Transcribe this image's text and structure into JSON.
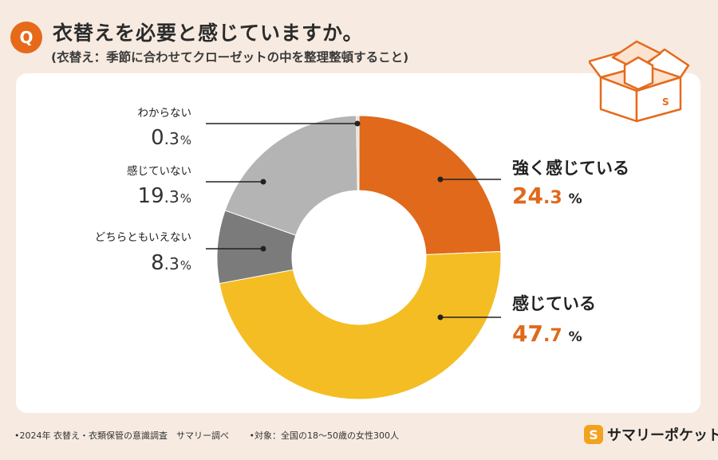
{
  "header": {
    "badge": "Q",
    "title": "衣替えを必要と感じていますか。",
    "subtitle": "(衣替え：季節に合わせてクローゼットの中を整理整頓すること)"
  },
  "chart_data": {
    "type": "pie",
    "variant": "donut",
    "start": "12 o'clock",
    "direction": "clockwise",
    "unit": "%",
    "slices": [
      {
        "label": "強く感じている",
        "value": 24.3,
        "value_int": "24",
        "value_dec": ".3",
        "color": "#e0691b",
        "label_color": "#e0691b"
      },
      {
        "label": "感じている",
        "value": 47.7,
        "value_int": "47",
        "value_dec": ".7",
        "color": "#f4bd24",
        "label_color": "#e0691b"
      },
      {
        "label": "どちらともいえない",
        "value": 8.3,
        "value_int": "8",
        "value_dec": ".3",
        "color": "#7b7b7b",
        "label_color": "#333333"
      },
      {
        "label": "感じていない",
        "value": 19.3,
        "value_int": "19",
        "value_dec": ".3",
        "color": "#b4b4b4",
        "label_color": "#333333"
      },
      {
        "label": "わからない",
        "value": 0.3,
        "value_int": "0",
        "value_dec": ".3",
        "color": "#dcdcdc",
        "label_color": "#333333"
      }
    ]
  },
  "footer": {
    "survey": "•2024年 衣替え・衣類保管の意識調査　サマリー調べ",
    "target": "•対象：全国の18〜50歳の女性300人"
  },
  "brand": {
    "mark": "S",
    "name": "サマリーポケット"
  },
  "colors": {
    "background": "#f7ebe1",
    "accent": "#e66a1a"
  }
}
